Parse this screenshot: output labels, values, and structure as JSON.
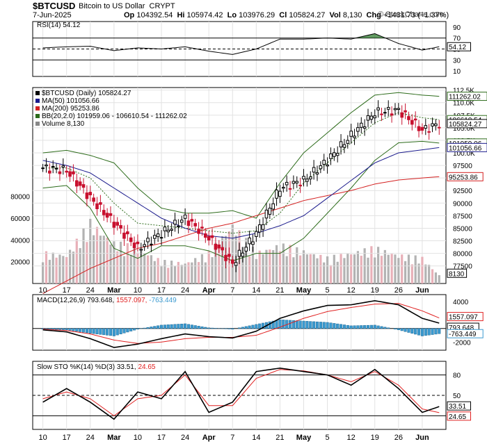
{
  "header": {
    "symbol": "$BTCUSD",
    "name": "Bitcoin to US Dollar",
    "exchange": "CRYPT",
    "date": "7-Jun-2025",
    "open_label": "Op",
    "open": "104392.54",
    "high_label": "Hi",
    "high": "105974.42",
    "low_label": "Lo",
    "low": "103976.29",
    "close_label": "Cl",
    "close": "105824.27",
    "vol_label": "Vol",
    "vol": "8,130",
    "chg_label": "Chg",
    "chg": "+1431.73 (+1.37%)",
    "credit": "© StockCharts.com"
  },
  "colors": {
    "up": "#000000",
    "down": "#c8102e",
    "ma50": "#1a1a8c",
    "ma200": "#d42020",
    "bb": "#2c6b1a",
    "bb_mid": "#2c6b1a",
    "volume": "#b3b3b3",
    "volume_down": "#e8b0b8",
    "macd_line": "#000000",
    "macd_signal": "#e02020",
    "macd_hist": "#3a9ad0",
    "sto_k": "#000000",
    "sto_d": "#e02020",
    "rsi_fill": "#2d7a2d",
    "rsi_line": "#000000"
  },
  "chart_data": [
    {
      "type": "line",
      "title": "RSI(14) 54.12",
      "legend": "RSI(14) 54.12",
      "ylim": [
        0,
        100
      ],
      "ticks": [
        70,
        50,
        30
      ],
      "tick_labels": [
        "90",
        "70",
        "50",
        "30",
        "10"
      ],
      "last_label": "54.12",
      "x": [
        "2025-02-10",
        "2025-02-17",
        "2025-02-24",
        "2025-03-03",
        "2025-03-10",
        "2025-03-17",
        "2025-03-24",
        "2025-03-31",
        "2025-04-07",
        "2025-04-14",
        "2025-04-21",
        "2025-04-28",
        "2025-05-05",
        "2025-05-12",
        "2025-05-19",
        "2025-05-26",
        "2025-06-02",
        "2025-06-07"
      ],
      "values": [
        52,
        54,
        55,
        47,
        52,
        50,
        54,
        46,
        40,
        50,
        68,
        68,
        70,
        68,
        78,
        60,
        48,
        54.12
      ]
    },
    {
      "type": "line",
      "title": "$BTCUSD (Daily) 105824.27",
      "x": [
        "2025-02-10",
        "2025-02-17",
        "2025-02-24",
        "2025-03-03",
        "2025-03-10",
        "2025-03-17",
        "2025-03-24",
        "2025-03-31",
        "2025-04-07",
        "2025-04-14",
        "2025-04-21",
        "2025-04-28",
        "2025-05-05",
        "2025-05-12",
        "2025-05-19",
        "2025-05-26",
        "2025-06-02",
        "2025-06-07"
      ],
      "series": [
        {
          "name": "$BTCUSD (Daily) 105824.27",
          "style": "candle",
          "values": [
            97000,
            96500,
            91000,
            86000,
            81000,
            84000,
            87000,
            83000,
            78000,
            84000,
            93000,
            94500,
            98500,
            103500,
            108000,
            108500,
            104500,
            105824.27
          ]
        },
        {
          "name": "MA(50) 101056.66",
          "values": [
            98500,
            97500,
            96000,
            93000,
            90000,
            87000,
            85000,
            83500,
            83000,
            84000,
            85500,
            87500,
            91000,
            94500,
            98000,
            100000,
            100600,
            101056.66
          ]
        },
        {
          "name": "MA(200) 95253.86",
          "values": [
            72000,
            74500,
            77000,
            79000,
            81000,
            82000,
            83500,
            85000,
            86000,
            87500,
            89000,
            90500,
            91500,
            92500,
            93800,
            94600,
            95000,
            95253.86
          ]
        },
        {
          "name": "BB(20,2.0) 101959.06 - 106610.54 - 111262.02",
          "values": [
            97000,
            97000,
            95000,
            90000,
            86000,
            85500,
            85000,
            84500,
            84000,
            84500,
            88000,
            94000,
            98000,
            102000,
            106000,
            108000,
            107000,
            106610.54
          ]
        }
      ],
      "bb_upper": [
        100000,
        100500,
        99500,
        98000,
        93000,
        89000,
        88000,
        88000,
        88500,
        87000,
        94000,
        100000,
        104000,
        108000,
        111500,
        112000,
        111500,
        111262.02
      ],
      "bb_lower": [
        93000,
        93500,
        89000,
        81000,
        79000,
        81500,
        81500,
        80500,
        78500,
        80000,
        80000,
        83000,
        88000,
        93000,
        98500,
        102000,
        102300,
        101959.06
      ],
      "ylim": [
        74000,
        113000
      ],
      "price_ticks": [
        "112.5K",
        "110.0K",
        "107.5K",
        "105.0K",
        "102.5K",
        "100.0K",
        "97500",
        "95000",
        "92500",
        "90000",
        "87500",
        "85000",
        "82500",
        "80000",
        "77500"
      ],
      "price_tick_values": [
        112500,
        110000,
        107500,
        105000,
        102500,
        100000,
        97500,
        95000,
        92500,
        90000,
        87500,
        85000,
        82500,
        80000,
        77500
      ],
      "value_labels": [
        "111262.02",
        "106610.54",
        "105824.27",
        "101959.06",
        "101056.66",
        "95253.86"
      ],
      "value_label_values": [
        111262.02,
        106610.54,
        105824.27,
        101959.06,
        101056.66,
        95253.86
      ],
      "legend": [
        "$BTCUSD (Daily) 105824.27",
        "MA(50) 101056.66",
        "MA(200) 95253.86",
        "BB(20,2.0) 101959.06 - 106610.54 - 111262.02",
        "Volume 8,130"
      ],
      "volume": [
        30000,
        28000,
        60000,
        40000,
        35000,
        22000,
        20000,
        30000,
        58000,
        30000,
        38000,
        32000,
        25000,
        30000,
        35000,
        28000,
        25000,
        8130
      ],
      "volume_ticks": [
        "80000",
        "60000",
        "40000",
        "20000"
      ],
      "volume_tick_values": [
        80000,
        60000,
        40000,
        20000
      ],
      "volume_last": "8130",
      "x_tick_labels": [
        "10",
        "17",
        "24",
        "Mar",
        "10",
        "17",
        "24",
        "Apr",
        "7",
        "14",
        "21",
        "May",
        "5",
        "12",
        "19",
        "26",
        "Jun"
      ]
    },
    {
      "type": "line",
      "title": "MACD(12,26,9) 793.648, 1557.097, -763.449",
      "legend": [
        "MACD(12,26,9) 793.648",
        "1557.097",
        "-763.449"
      ],
      "ylim": [
        -3200,
        5000
      ],
      "ticks": [
        "4000",
        "2000",
        "0",
        "-2000"
      ],
      "tick_values": [
        4000,
        2000,
        0,
        -2000
      ],
      "last_labels": [
        "1557.097",
        "793.648",
        "-763.449"
      ],
      "x": [
        "2025-02-10",
        "2025-02-17",
        "2025-02-24",
        "2025-03-03",
        "2025-03-10",
        "2025-03-17",
        "2025-03-24",
        "2025-03-31",
        "2025-04-07",
        "2025-04-14",
        "2025-04-21",
        "2025-04-28",
        "2025-05-05",
        "2025-05-12",
        "2025-05-19",
        "2025-05-26",
        "2025-06-02",
        "2025-06-07"
      ],
      "series": [
        {
          "name": "MACD",
          "values": [
            -200,
            -500,
            -1500,
            -2800,
            -2300,
            -1500,
            -800,
            -1200,
            -1400,
            -400,
            1500,
            2600,
            3400,
            3500,
            4100,
            3500,
            1500,
            793.648
          ]
        },
        {
          "name": "Signal",
          "values": [
            -100,
            -300,
            -800,
            -1700,
            -2200,
            -2000,
            -1500,
            -1300,
            -1300,
            -1000,
            200,
            1500,
            2500,
            3100,
            3600,
            3700,
            2600,
            1557.097
          ]
        },
        {
          "name": "Histogram",
          "values": [
            -100,
            -200,
            -700,
            -1100,
            -100,
            500,
            700,
            100,
            -100,
            600,
            1300,
            1100,
            900,
            400,
            500,
            -200,
            -1100,
            -763.449
          ]
        }
      ]
    },
    {
      "type": "line",
      "title": "Slow STO %K(14) %D(3) 33.51, 24.65",
      "legend": [
        "Slow STO %K(14) %D(3) 33.51",
        "24.65"
      ],
      "ylim": [
        0,
        100
      ],
      "ticks": [
        "80",
        "50",
        "20"
      ],
      "tick_values": [
        80,
        50,
        20
      ],
      "last_labels": [
        "33.51",
        "24.65"
      ],
      "x": [
        "2025-02-10",
        "2025-02-17",
        "2025-02-24",
        "2025-03-03",
        "2025-03-10",
        "2025-03-17",
        "2025-03-24",
        "2025-03-31",
        "2025-04-07",
        "2025-04-14",
        "2025-04-21",
        "2025-04-28",
        "2025-05-05",
        "2025-05-12",
        "2025-05-19",
        "2025-05-26",
        "2025-06-02",
        "2025-06-07"
      ],
      "series": [
        {
          "name": "%K(14) 33.51",
          "values": [
            40,
            60,
            40,
            15,
            55,
            45,
            85,
            25,
            40,
            85,
            90,
            85,
            80,
            65,
            88,
            60,
            25,
            33.51
          ]
        },
        {
          "name": "%D(3) 24.65",
          "values": [
            45,
            55,
            45,
            20,
            45,
            50,
            80,
            35,
            35,
            75,
            88,
            86,
            80,
            70,
            85,
            65,
            30,
            24.65
          ]
        }
      ],
      "x_tick_labels": [
        "10",
        "17",
        "24",
        "Mar",
        "10",
        "17",
        "24",
        "Apr",
        "7",
        "14",
        "21",
        "May",
        "5",
        "12",
        "19",
        "26",
        "Jun"
      ]
    }
  ]
}
